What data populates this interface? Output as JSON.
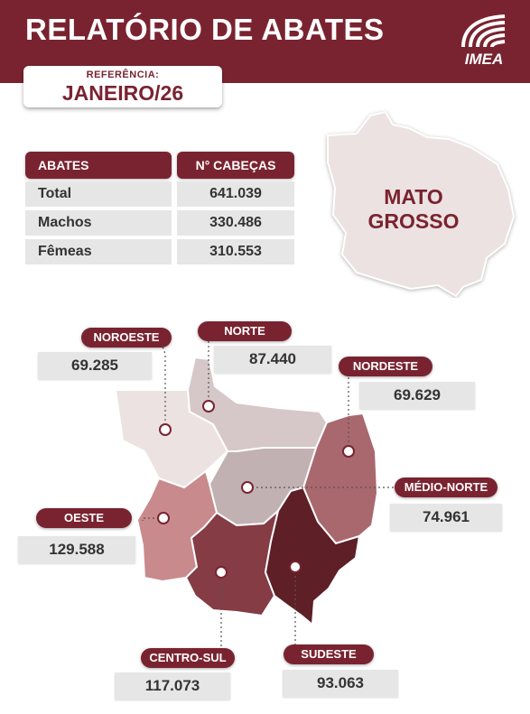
{
  "header": {
    "title": "RELATÓRIO DE ABATES",
    "logo_text": "IMEA",
    "reference_label": "REFERÊNCIA:",
    "reference_value": "JANEIRO/26"
  },
  "summary_table": {
    "col_label": "ABATES",
    "col_value": "N° CABEÇAS",
    "rows": [
      {
        "label": "Total",
        "value": "641.039"
      },
      {
        "label": "Machos",
        "value": "330.486"
      },
      {
        "label": "Fêmeas",
        "value": "310.553"
      }
    ]
  },
  "state": {
    "name_line1": "MATO",
    "name_line2": "GROSSO"
  },
  "regions": {
    "noroeste": {
      "name": "NOROESTE",
      "value": "69.285"
    },
    "norte": {
      "name": "NORTE",
      "value": "87.440"
    },
    "nordeste": {
      "name": "NORDESTE",
      "value": "69.629"
    },
    "medio_norte": {
      "name": "MÉDIO-NORTE",
      "value": "74.961"
    },
    "oeste": {
      "name": "OESTE",
      "value": "129.588"
    },
    "centro_sul": {
      "name": "CENTRO-SUL",
      "value": "117.073"
    },
    "sudeste": {
      "name": "SUDESTE",
      "value": "93.063"
    }
  },
  "colors": {
    "brand": "#7a2330",
    "noroeste": "#ece2e2",
    "norte": "#d6c7c8",
    "nordeste": "#a9686e",
    "medio_norte": "#c2b1b3",
    "oeste": "#c98a8d",
    "centro_sul": "#853c45",
    "sudeste": "#5e1f27"
  }
}
